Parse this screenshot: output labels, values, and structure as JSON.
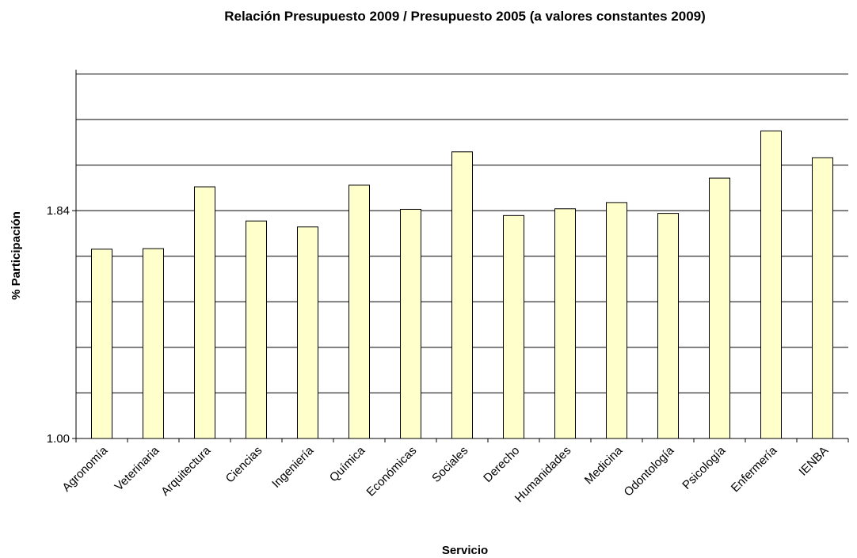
{
  "chart_data": {
    "type": "bar",
    "title": "Relación Presupuesto 2009 / Presupuesto 2005 (a valores constantes 2009)",
    "xlabel": "Servicio",
    "ylabel": "% Participación",
    "ylim": [
      1.0,
      2.36
    ],
    "yticks": [
      "1.00",
      "1.84"
    ],
    "grid": true,
    "bar_color": "#ffffcc",
    "bar_stroke": "#000000",
    "categories": [
      "Agronomía",
      "Veterinaria",
      "Arquitectura",
      "Ciencias",
      "Ingeniería",
      "Química",
      "Económicas",
      "Sociales",
      "Derecho",
      "Humanidades",
      "Medicina",
      "Odontología",
      "Psicología",
      "Enfermería",
      "IENBA"
    ],
    "values": [
      1.698,
      1.7,
      1.928,
      1.802,
      1.78,
      1.934,
      1.845,
      2.057,
      1.822,
      1.847,
      1.87,
      1.83,
      1.96,
      2.134,
      2.035
    ]
  }
}
